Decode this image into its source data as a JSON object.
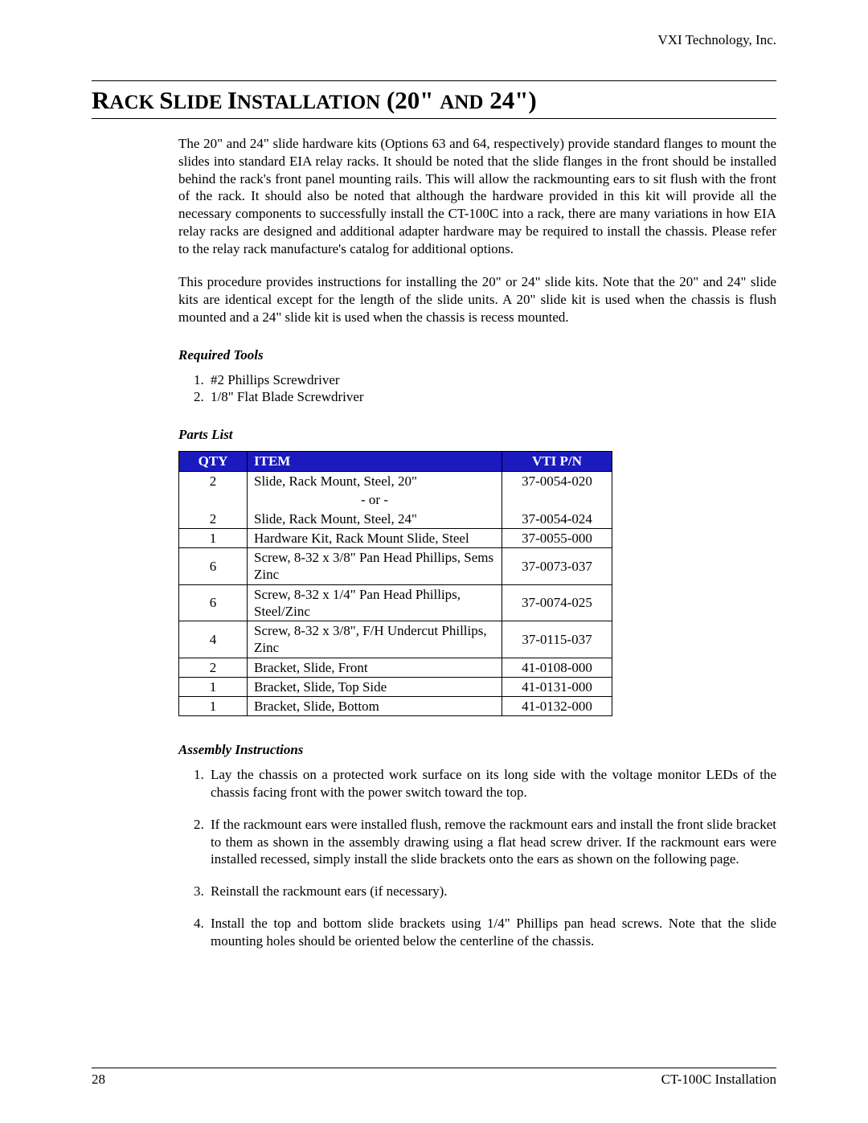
{
  "header": {
    "company": "VXI Technology, Inc."
  },
  "title": {
    "html_parts": [
      "R",
      "ACK ",
      "S",
      "LIDE ",
      "I",
      "NSTALLATION",
      " (20\" ",
      "AND",
      " 24\")"
    ]
  },
  "paragraphs": {
    "p1": "The 20\" and 24\" slide hardware kits (Options 63 and 64, respectively) provide standard flanges to mount the slides into standard EIA relay racks. It should be noted that the slide flanges in the front should be installed behind the rack's front panel mounting rails. This will allow the rackmounting ears to sit flush with the front of the rack. It should also be noted that although the hardware provided in this kit will provide all the necessary components to successfully install the CT-100C into a rack, there are many variations in how EIA relay racks are designed and additional adapter hardware may be required to install the chassis. Please refer to the relay rack manufacture's catalog for additional options.",
    "p2": "This procedure provides instructions for installing the 20\" or 24\" slide kits. Note that the 20\" and 24\" slide kits are identical except for the length of the slide units. A 20\" slide kit is used when the chassis is flush mounted and a 24\" slide kit is used when the chassis is recess mounted."
  },
  "required_tools": {
    "heading": "Required Tools",
    "items": [
      "#2 Phillips Screwdriver",
      "1/8\" Flat Blade Screwdriver"
    ]
  },
  "parts_list": {
    "heading": "Parts List",
    "columns": [
      "QTY",
      "ITEM",
      "VTI P/N"
    ],
    "header_bg": "#1a1abf",
    "header_fg": "#ffffff",
    "rows": [
      {
        "qty": "2",
        "item_lines": [
          "Slide, Rack Mount, Steel, 20\"",
          "- or -",
          "Slide, Rack Mount, Steel, 24\""
        ],
        "pn_lines": [
          "37-0054-020",
          "",
          "37-0054-024"
        ],
        "multi": true
      },
      {
        "qty": "1",
        "item": "Hardware Kit, Rack Mount Slide, Steel",
        "pn": "37-0055-000"
      },
      {
        "qty": "6",
        "item": "Screw, 8-32 x 3/8\" Pan Head Phillips, Sems Zinc",
        "pn": "37-0073-037"
      },
      {
        "qty": "6",
        "item": "Screw, 8-32 x 1/4\" Pan Head Phillips, Steel/Zinc",
        "pn": "37-0074-025"
      },
      {
        "qty": "4",
        "item": "Screw, 8-32 x 3/8\", F/H Undercut Phillips, Zinc",
        "pn": "37-0115-037"
      },
      {
        "qty": "2",
        "item": "Bracket, Slide, Front",
        "pn": "41-0108-000"
      },
      {
        "qty": "1",
        "item": "Bracket, Slide, Top Side",
        "pn": "41-0131-000"
      },
      {
        "qty": "1",
        "item": "Bracket, Slide, Bottom",
        "pn": "41-0132-000"
      }
    ]
  },
  "assembly": {
    "heading": "Assembly Instructions",
    "items": [
      "Lay the chassis on a protected work surface on its long side with the voltage monitor LEDs of the chassis facing front with the power switch toward the top.",
      "If the rackmount ears were installed flush, remove the rackmount ears and install the front slide bracket to them as shown in the assembly drawing using a flat head screw driver. If the rackmount ears were installed recessed, simply install the slide brackets onto the ears as shown on the following page.",
      "Reinstall the rackmount ears (if necessary).",
      "Install the top and bottom slide brackets using 1/4\" Phillips pan head screws. Note that the slide mounting holes should be oriented below the centerline of the chassis."
    ]
  },
  "footer": {
    "page": "28",
    "doc": "CT-100C Installation"
  }
}
